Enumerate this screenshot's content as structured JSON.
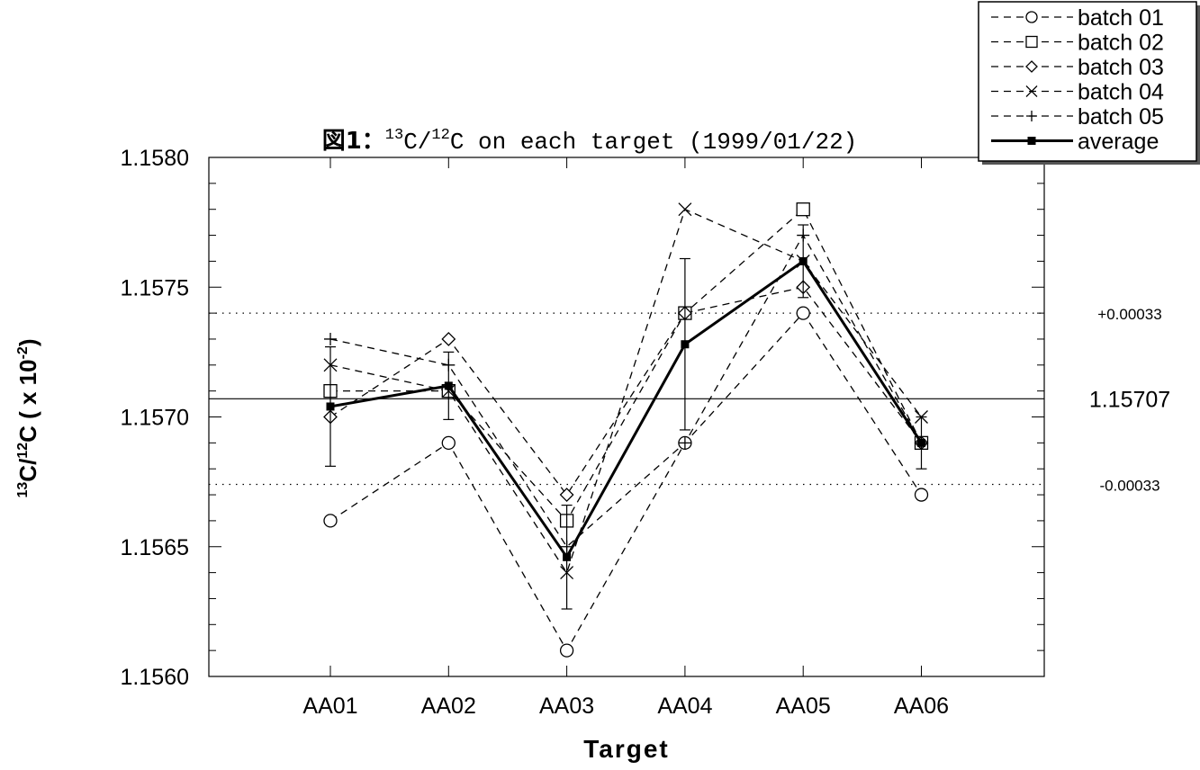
{
  "chart_data": {
    "type": "line",
    "title": {
      "prefix": "図1：",
      "sup1": "13",
      "mid": "C/",
      "sup2": "12",
      "suffix": "C on each target (1999/01/22)"
    },
    "xlabel": "Target",
    "ylabel": {
      "sup1": "13",
      "mid": "C/",
      "sup2": "12",
      "suffix": "C ( x 10",
      "sup3": "-2",
      "end": ")"
    },
    "categories": [
      "AA01",
      "AA02",
      "AA03",
      "AA04",
      "AA05",
      "AA06"
    ],
    "ylim": [
      1.156,
      1.158
    ],
    "yticks": [
      "1.1560",
      "1.1565",
      "1.1570",
      "1.1575",
      "1.1580"
    ],
    "series": [
      {
        "name": "batch 01",
        "marker": "circle",
        "values": [
          1.1566,
          1.1569,
          1.1561,
          1.1569,
          1.1574,
          1.1567
        ]
      },
      {
        "name": "batch 02",
        "marker": "square",
        "values": [
          1.1571,
          1.1571,
          1.1566,
          1.1574,
          1.1578,
          1.1569
        ]
      },
      {
        "name": "batch 03",
        "marker": "diamond",
        "values": [
          1.157,
          1.1573,
          1.1567,
          1.1574,
          1.1575,
          1.1569
        ]
      },
      {
        "name": "batch 04",
        "marker": "x",
        "values": [
          1.1572,
          1.1571,
          1.1564,
          1.1578,
          1.1576,
          1.157
        ]
      },
      {
        "name": "batch 05",
        "marker": "plus",
        "values": [
          1.1573,
          1.1572,
          1.1565,
          1.1569,
          1.1577,
          1.1569
        ]
      }
    ],
    "average": {
      "name": "average",
      "values": [
        1.15704,
        1.15712,
        1.15646,
        1.15728,
        1.1576,
        1.1569
      ],
      "error": [
        0.00023,
        0.00013,
        0.0002,
        0.00033,
        0.00014,
        0.0001
      ]
    },
    "reference_lines": [
      {
        "value": 1.15707,
        "label": "1.15707",
        "style": "solid"
      },
      {
        "value": 1.1574,
        "label": "+0.00033",
        "style": "dotted"
      },
      {
        "value": 1.15674,
        "label": "-0.00033",
        "style": "dotted"
      }
    ],
    "grid": false,
    "legend_position": "top-right"
  }
}
